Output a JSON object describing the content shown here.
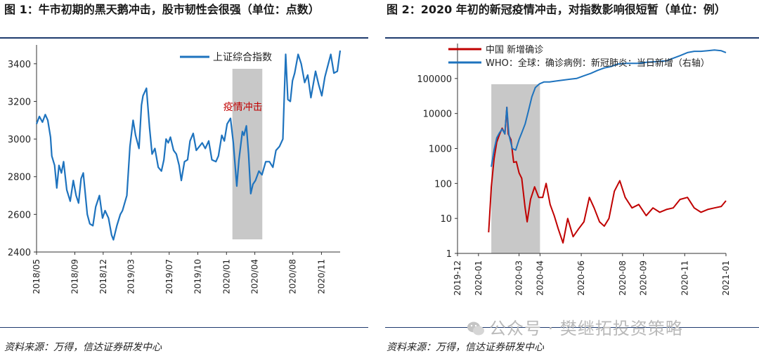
{
  "left": {
    "title": "图 1：牛市初期的黑天鹅冲击，股市韧性会很强（单位：点数）",
    "source": "资料来源：万得，信达证券研发中心",
    "chart_data": {
      "type": "line",
      "series": [
        {
          "name": "上证综合指数",
          "color": "#1e73be",
          "points": [
            [
              "2018-05-01",
              3080
            ],
            [
              "2018-05-10",
              3120
            ],
            [
              "2018-05-20",
              3090
            ],
            [
              "2018-05-29",
              3130
            ],
            [
              "2018-06-06",
              3100
            ],
            [
              "2018-06-15",
              3010
            ],
            [
              "2018-06-19",
              2910
            ],
            [
              "2018-06-28",
              2860
            ],
            [
              "2018-07-05",
              2740
            ],
            [
              "2018-07-12",
              2860
            ],
            [
              "2018-07-20",
              2820
            ],
            [
              "2018-07-27",
              2880
            ],
            [
              "2018-08-06",
              2730
            ],
            [
              "2018-08-17",
              2670
            ],
            [
              "2018-08-27",
              2780
            ],
            [
              "2018-09-05",
              2700
            ],
            [
              "2018-09-13",
              2660
            ],
            [
              "2018-09-21",
              2790
            ],
            [
              "2018-09-28",
              2820
            ],
            [
              "2018-10-11",
              2600
            ],
            [
              "2018-10-19",
              2550
            ],
            [
              "2018-10-29",
              2540
            ],
            [
              "2018-11-07",
              2640
            ],
            [
              "2018-11-19",
              2700
            ],
            [
              "2018-11-29",
              2580
            ],
            [
              "2018-12-07",
              2620
            ],
            [
              "2018-12-18",
              2580
            ],
            [
              "2018-12-28",
              2490
            ],
            [
              "2019-01-03",
              2465
            ],
            [
              "2019-01-14",
              2540
            ],
            [
              "2019-01-25",
              2600
            ],
            [
              "2019-02-01",
              2620
            ],
            [
              "2019-02-15",
              2700
            ],
            [
              "2019-02-25",
              2960
            ],
            [
              "2019-03-07",
              3100
            ],
            [
              "2019-03-15",
              3020
            ],
            [
              "2019-03-26",
              2950
            ],
            [
              "2019-04-03",
              3180
            ],
            [
              "2019-04-08",
              3230
            ],
            [
              "2019-04-19",
              3270
            ],
            [
              "2019-04-29",
              3060
            ],
            [
              "2019-05-07",
              2920
            ],
            [
              "2019-05-16",
              2950
            ],
            [
              "2019-05-27",
              2850
            ],
            [
              "2019-06-06",
              2830
            ],
            [
              "2019-06-14",
              2890
            ],
            [
              "2019-06-21",
              3000
            ],
            [
              "2019-06-28",
              2980
            ],
            [
              "2019-07-05",
              3010
            ],
            [
              "2019-07-15",
              2940
            ],
            [
              "2019-07-24",
              2920
            ],
            [
              "2019-08-02",
              2860
            ],
            [
              "2019-08-09",
              2780
            ],
            [
              "2019-08-19",
              2880
            ],
            [
              "2019-08-29",
              2890
            ],
            [
              "2019-09-06",
              2990
            ],
            [
              "2019-09-16",
              3030
            ],
            [
              "2019-09-26",
              2940
            ],
            [
              "2019-10-15",
              2980
            ],
            [
              "2019-10-25",
              2950
            ],
            [
              "2019-11-05",
              2990
            ],
            [
              "2019-11-15",
              2890
            ],
            [
              "2019-11-28",
              2880
            ],
            [
              "2019-12-06",
              2910
            ],
            [
              "2019-12-17",
              3020
            ],
            [
              "2019-12-25",
              2990
            ],
            [
              "2020-01-03",
              3080
            ],
            [
              "2020-01-14",
              3110
            ],
            [
              "2020-01-23",
              2980
            ],
            [
              "2020-02-03",
              2750
            ],
            [
              "2020-02-10",
              2890
            ],
            [
              "2020-02-21",
              3040
            ],
            [
              "2020-02-26",
              3020
            ],
            [
              "2020-03-05",
              3070
            ],
            [
              "2020-03-12",
              2920
            ],
            [
              "2020-03-19",
              2710
            ],
            [
              "2020-03-26",
              2760
            ],
            [
              "2020-04-03",
              2780
            ],
            [
              "2020-04-14",
              2830
            ],
            [
              "2020-04-24",
              2810
            ],
            [
              "2020-05-06",
              2880
            ],
            [
              "2020-05-18",
              2880
            ],
            [
              "2020-05-29",
              2850
            ],
            [
              "2020-06-08",
              2940
            ],
            [
              "2020-06-19",
              2960
            ],
            [
              "2020-06-30",
              3000
            ],
            [
              "2020-07-03",
              3150
            ],
            [
              "2020-07-09",
              3450
            ],
            [
              "2020-07-16",
              3210
            ],
            [
              "2020-07-24",
              3200
            ],
            [
              "2020-07-31",
              3310
            ],
            [
              "2020-08-07",
              3350
            ],
            [
              "2020-08-18",
              3450
            ],
            [
              "2020-08-28",
              3400
            ],
            [
              "2020-09-08",
              3300
            ],
            [
              "2020-09-18",
              3340
            ],
            [
              "2020-09-28",
              3220
            ],
            [
              "2020-10-13",
              3360
            ],
            [
              "2020-10-23",
              3290
            ],
            [
              "2020-11-02",
              3230
            ],
            [
              "2020-11-12",
              3330
            ],
            [
              "2020-11-20",
              3380
            ],
            [
              "2020-12-01",
              3450
            ],
            [
              "2020-12-11",
              3350
            ],
            [
              "2020-12-22",
              3360
            ],
            [
              "2020-12-31",
              3470
            ]
          ]
        }
      ],
      "ylim": [
        2400,
        3500
      ],
      "yticks": [
        2400,
        2600,
        2800,
        3000,
        3200,
        3400
      ],
      "xticks": [
        "2018/05",
        "2018/09",
        "2018/12",
        "2019/03",
        "2019/07",
        "2019/10",
        "2020/01",
        "2020/04",
        "2020/08",
        "2020/11"
      ],
      "xtick_dates": [
        "2018-05-01",
        "2018-09-01",
        "2018-12-01",
        "2019-03-01",
        "2019-07-01",
        "2019-10-01",
        "2020-01-01",
        "2020-04-01",
        "2020-08-01",
        "2020-11-01"
      ],
      "xlim": [
        "2018-05-01",
        "2020-12-31"
      ],
      "shaded_period": [
        "2020-01-20",
        "2020-04-25"
      ],
      "annotation": {
        "text": "疫情冲击",
        "color": "#c00000"
      },
      "legend": "top-right",
      "grid": false
    }
  },
  "right": {
    "title": "图 2：2020 年初的新冠疫情冲击，对指数影响很短暂（单位：例）",
    "source": "资料来源：万得，信达证券研发中心",
    "chart_data": {
      "type": "line",
      "scale": "log",
      "series": [
        {
          "name": "中国  新增确诊",
          "color": "#c00000",
          "points": [
            [
              "2020-01-16",
              4
            ],
            [
              "2020-01-20",
              80
            ],
            [
              "2020-01-24",
              500
            ],
            [
              "2020-01-28",
              1500
            ],
            [
              "2020-02-01",
              2500
            ],
            [
              "2020-02-05",
              3800
            ],
            [
              "2020-02-09",
              2600
            ],
            [
              "2020-02-12",
              15000
            ],
            [
              "2020-02-14",
              2600
            ],
            [
              "2020-02-18",
              1800
            ],
            [
              "2020-02-22",
              400
            ],
            [
              "2020-02-26",
              420
            ],
            [
              "2020-03-01",
              200
            ],
            [
              "2020-03-05",
              140
            ],
            [
              "2020-03-10",
              20
            ],
            [
              "2020-03-13",
              8
            ],
            [
              "2020-03-18",
              35
            ],
            [
              "2020-03-24",
              80
            ],
            [
              "2020-03-30",
              40
            ],
            [
              "2020-04-05",
              40
            ],
            [
              "2020-04-10",
              100
            ],
            [
              "2020-04-16",
              25
            ],
            [
              "2020-04-22",
              12
            ],
            [
              "2020-04-28",
              5
            ],
            [
              "2020-05-05",
              2
            ],
            [
              "2020-05-12",
              10
            ],
            [
              "2020-05-20",
              3
            ],
            [
              "2020-05-28",
              5
            ],
            [
              "2020-06-05",
              8
            ],
            [
              "2020-06-13",
              40
            ],
            [
              "2020-06-20",
              20
            ],
            [
              "2020-06-28",
              8
            ],
            [
              "2020-07-05",
              6
            ],
            [
              "2020-07-12",
              10
            ],
            [
              "2020-07-20",
              60
            ],
            [
              "2020-07-28",
              120
            ],
            [
              "2020-08-05",
              40
            ],
            [
              "2020-08-15",
              20
            ],
            [
              "2020-08-25",
              25
            ],
            [
              "2020-09-05",
              12
            ],
            [
              "2020-09-15",
              20
            ],
            [
              "2020-09-25",
              15
            ],
            [
              "2020-10-05",
              18
            ],
            [
              "2020-10-15",
              20
            ],
            [
              "2020-10-25",
              35
            ],
            [
              "2020-11-05",
              40
            ],
            [
              "2020-11-15",
              20
            ],
            [
              "2020-11-25",
              15
            ],
            [
              "2020-12-05",
              18
            ],
            [
              "2020-12-15",
              20
            ],
            [
              "2020-12-25",
              22
            ],
            [
              "2021-01-01",
              32
            ]
          ]
        },
        {
          "name": "WHO：全球：确诊病例：新冠肺炎：当日新增（右轴）",
          "color": "#1e73be",
          "points": [
            [
              "2020-01-20",
              300
            ],
            [
              "2020-01-24",
              900
            ],
            [
              "2020-01-28",
              2000
            ],
            [
              "2020-02-01",
              2800
            ],
            [
              "2020-02-05",
              3600
            ],
            [
              "2020-02-09",
              2600
            ],
            [
              "2020-02-12",
              15000
            ],
            [
              "2020-02-15",
              2500
            ],
            [
              "2020-02-20",
              1000
            ],
            [
              "2020-02-25",
              900
            ],
            [
              "2020-03-01",
              1800
            ],
            [
              "2020-03-05",
              2800
            ],
            [
              "2020-03-10",
              5000
            ],
            [
              "2020-03-15",
              12000
            ],
            [
              "2020-03-20",
              30000
            ],
            [
              "2020-03-25",
              55000
            ],
            [
              "2020-03-31",
              70000
            ],
            [
              "2020-04-07",
              80000
            ],
            [
              "2020-04-15",
              80000
            ],
            [
              "2020-04-25",
              85000
            ],
            [
              "2020-05-05",
              90000
            ],
            [
              "2020-05-15",
              95000
            ],
            [
              "2020-05-25",
              100000
            ],
            [
              "2020-06-05",
              120000
            ],
            [
              "2020-06-15",
              140000
            ],
            [
              "2020-06-25",
              170000
            ],
            [
              "2020-07-05",
              200000
            ],
            [
              "2020-07-15",
              220000
            ],
            [
              "2020-07-25",
              260000
            ],
            [
              "2020-08-05",
              270000
            ],
            [
              "2020-08-15",
              270000
            ],
            [
              "2020-08-25",
              270000
            ],
            [
              "2020-09-05",
              290000
            ],
            [
              "2020-09-15",
              300000
            ],
            [
              "2020-09-25",
              310000
            ],
            [
              "2020-10-05",
              320000
            ],
            [
              "2020-10-15",
              380000
            ],
            [
              "2020-10-25",
              450000
            ],
            [
              "2020-11-05",
              550000
            ],
            [
              "2020-11-15",
              600000
            ],
            [
              "2020-11-25",
              600000
            ],
            [
              "2020-12-05",
              620000
            ],
            [
              "2020-12-15",
              650000
            ],
            [
              "2020-12-25",
              620000
            ],
            [
              "2021-01-01",
              550000
            ]
          ]
        }
      ],
      "yticks": [
        1,
        10,
        100,
        1000,
        10000,
        100000
      ],
      "ylim": [
        1,
        1000000
      ],
      "xticks": [
        "2019-12",
        "2020-01",
        "2020-03",
        "2020-04",
        "2020-06",
        "2020-08",
        "2020-09",
        "2020-11",
        "2021-01"
      ],
      "xtick_dates": [
        "2019-12-01",
        "2020-01-01",
        "2020-03-01",
        "2020-04-01",
        "2020-06-01",
        "2020-08-01",
        "2020-09-01",
        "2020-11-01",
        "2021-01-01"
      ],
      "xlim": [
        "2019-12-01",
        "2021-01-01"
      ],
      "shaded_period": [
        "2020-01-20",
        "2020-04-01"
      ],
      "legend": "top-left",
      "grid": false
    }
  },
  "watermark": {
    "text": "公众号 · 樊继拓投资策略"
  }
}
